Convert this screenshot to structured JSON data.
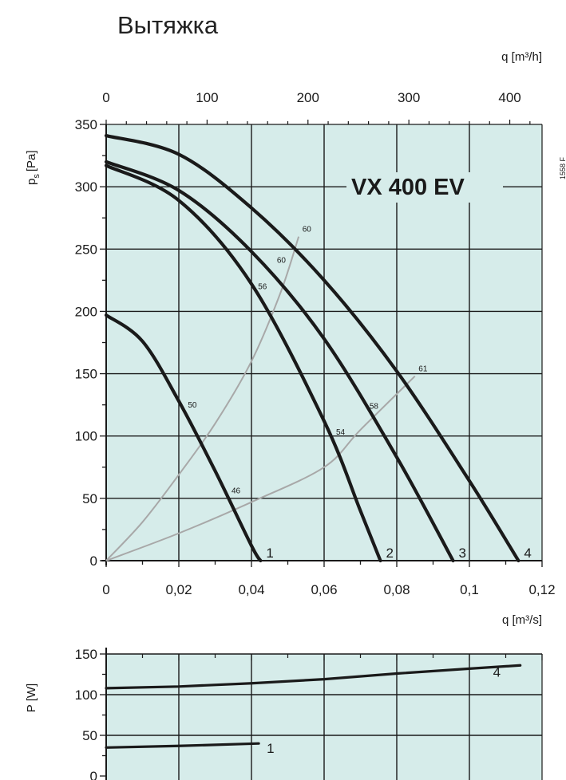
{
  "title": "Вытяжка",
  "chart_data": [
    {
      "type": "line",
      "model_label": "VX 400 EV",
      "side_code": "1558 F",
      "ylabel_main": "p",
      "ylabel_sub": "s",
      "ylabel_unit": "[Pa]",
      "xlabel_bottom": "q [m³/s]",
      "xlabel_top": "q [m³/h]",
      "xlim": [
        0,
        0.12
      ],
      "ylim": [
        0,
        350
      ],
      "x_ticks": [
        0,
        0.02,
        0.04,
        0.06,
        0.08,
        0.1,
        0.12
      ],
      "x_tick_labels": [
        "0",
        "0,02",
        "0,04",
        "0,06",
        "0,08",
        "0,1",
        "0,12"
      ],
      "top_ticks": [
        0,
        100,
        200,
        300,
        400
      ],
      "top_tick_labels": [
        "0",
        "100",
        "200",
        "300",
        "400"
      ],
      "y_ticks": [
        0,
        50,
        100,
        150,
        200,
        250,
        300,
        350
      ],
      "y_tick_labels": [
        "0",
        "50",
        "100",
        "150",
        "200",
        "250",
        "300",
        "350"
      ],
      "grid": true,
      "background_color": "#d6ecea",
      "curve_color": "#1a1a1a",
      "system_color": "#a8a8a8",
      "series": [
        {
          "name": "1",
          "x": [
            0,
            0.01,
            0.02,
            0.03,
            0.04,
            0.0425
          ],
          "y": [
            197,
            176,
            128,
            72,
            12,
            0
          ]
        },
        {
          "name": "2",
          "x": [
            0,
            0.02,
            0.04,
            0.06,
            0.07,
            0.0755
          ],
          "y": [
            317,
            289,
            222,
            112,
            40,
            0
          ]
        },
        {
          "name": "3",
          "x": [
            0,
            0.02,
            0.04,
            0.06,
            0.08,
            0.0955
          ],
          "y": [
            320,
            297,
            248,
            178,
            83,
            0
          ]
        },
        {
          "name": "4",
          "x": [
            0,
            0.02,
            0.04,
            0.06,
            0.08,
            0.1,
            0.1135
          ],
          "y": [
            341,
            326,
            283,
            225,
            152,
            64,
            0
          ]
        }
      ],
      "system_curves": [
        {
          "x": [
            0,
            0.01,
            0.02,
            0.03,
            0.04,
            0.048,
            0.053
          ],
          "y": [
            0,
            31,
            69,
            110,
            160,
            215,
            260
          ]
        },
        {
          "x": [
            0,
            0.02,
            0.04,
            0.06,
            0.07,
            0.085
          ],
          "y": [
            0,
            22,
            47,
            75,
            105,
            148
          ]
        }
      ],
      "annotations": [
        {
          "text": "50",
          "x": 0.0225,
          "y": 123
        },
        {
          "text": "46",
          "x": 0.0345,
          "y": 54
        },
        {
          "text": "56",
          "x": 0.0418,
          "y": 218
        },
        {
          "text": "60",
          "x": 0.047,
          "y": 239
        },
        {
          "text": "60",
          "x": 0.054,
          "y": 264
        },
        {
          "text": "54",
          "x": 0.0633,
          "y": 101
        },
        {
          "text": "58",
          "x": 0.0725,
          "y": 122
        },
        {
          "text": "61",
          "x": 0.086,
          "y": 152
        }
      ]
    },
    {
      "type": "line",
      "ylabel": "P [W]",
      "xlim": [
        0,
        0.12
      ],
      "ylim": [
        0,
        150
      ],
      "y_ticks": [
        0,
        50,
        100,
        150
      ],
      "y_tick_labels": [
        "0",
        "50",
        "100",
        "150"
      ],
      "grid": true,
      "series": [
        {
          "name": "1",
          "x": [
            0,
            0.02,
            0.042
          ],
          "y": [
            35,
            37,
            40
          ]
        },
        {
          "name": "4",
          "x": [
            0,
            0.02,
            0.04,
            0.06,
            0.08,
            0.1,
            0.114
          ],
          "y": [
            108,
            110,
            114,
            119,
            126,
            132,
            136
          ]
        }
      ]
    }
  ]
}
